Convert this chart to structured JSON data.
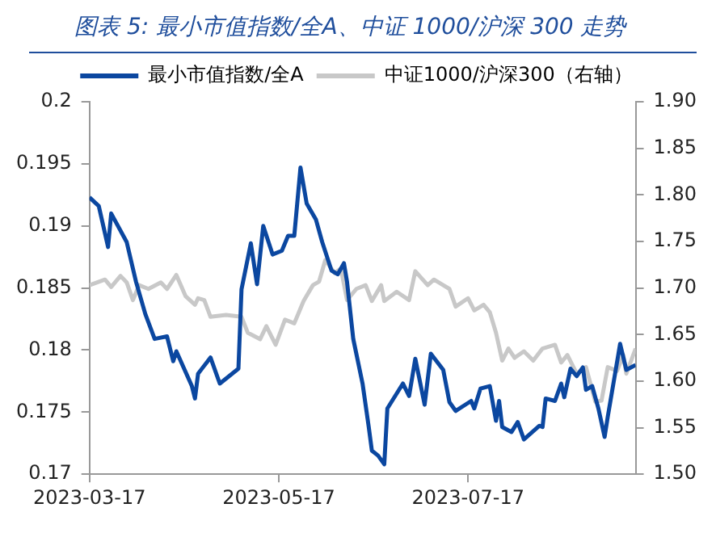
{
  "chart_data": {
    "type": "line",
    "title": "图表 5: 最小市值指数/全A、中证 1000/沪深 300 走势",
    "x": [
      "2023-03-17",
      "2023-03-20",
      "2023-03-23",
      "2023-03-24",
      "2023-03-29",
      "2023-04-01",
      "2023-04-04",
      "2023-04-07",
      "2023-04-11",
      "2023-04-13",
      "2023-04-14",
      "2023-04-19",
      "2023-04-20",
      "2023-04-21",
      "2023-04-25",
      "2023-04-28",
      "2023-05-04",
      "2023-05-05",
      "2023-05-08",
      "2023-05-10",
      "2023-05-12",
      "2023-05-15",
      "2023-05-18",
      "2023-05-20",
      "2023-05-22",
      "2023-05-24",
      "2023-05-26",
      "2023-05-29",
      "2023-05-31",
      "2023-06-03",
      "2023-06-05",
      "2023-06-07",
      "2023-06-08",
      "2023-06-10",
      "2023-06-13",
      "2023-06-15",
      "2023-06-16",
      "2023-06-18",
      "2023-06-20",
      "2023-06-21",
      "2023-06-26",
      "2023-06-28",
      "2023-06-30",
      "2023-07-03",
      "2023-07-05",
      "2023-07-09",
      "2023-07-11",
      "2023-07-13",
      "2023-07-18",
      "2023-07-19",
      "2023-07-21",
      "2023-07-24",
      "2023-07-26",
      "2023-07-27",
      "2023-07-28",
      "2023-07-31",
      "2023-08-02",
      "2023-08-04",
      "2023-08-09",
      "2023-08-10",
      "2023-08-11",
      "2023-08-14",
      "2023-08-16",
      "2023-08-17",
      "2023-08-19",
      "2023-08-21",
      "2023-08-23",
      "2023-08-24",
      "2023-08-26",
      "2023-08-28",
      "2023-08-30",
      "2023-08-31",
      "2023-09-04",
      "2023-09-06",
      "2023-09-09"
    ],
    "series": [
      {
        "name": "最小市值指数/全A",
        "color": "#0b47a0",
        "values": [
          0.1923,
          0.1916,
          0.1883,
          0.191,
          0.1887,
          0.1855,
          0.1829,
          0.1809,
          0.1811,
          0.1791,
          0.1799,
          0.1771,
          0.1761,
          0.1781,
          0.1794,
          0.1773,
          0.1785,
          0.1849,
          0.1886,
          0.1853,
          0.19,
          0.1877,
          0.188,
          0.1892,
          0.1892,
          0.1947,
          0.1918,
          0.1905,
          0.1887,
          0.1864,
          0.1861,
          0.187,
          0.1855,
          0.1809,
          0.1773,
          0.1738,
          0.1719,
          0.1715,
          0.1708,
          0.1753,
          0.1773,
          0.1763,
          0.1793,
          0.1756,
          0.1797,
          0.1784,
          0.1758,
          0.1751,
          0.1759,
          0.1753,
          0.1769,
          0.1771,
          0.1743,
          0.1759,
          0.1738,
          0.1734,
          0.1742,
          0.1728,
          0.1739,
          0.1738,
          0.1761,
          0.1759,
          0.1773,
          0.1762,
          0.1785,
          0.1779,
          0.1786,
          0.1768,
          0.1771,
          0.1753,
          0.173,
          0.1746,
          0.1805,
          0.1784,
          0.1788
        ]
      },
      {
        "name": "中证1000/沪深300（右轴）",
        "color": "#c8c8c8",
        "axis": "y2",
        "x": [
          "2023-03-17",
          "2023-03-22",
          "2023-03-24",
          "2023-03-27",
          "2023-03-29",
          "2023-03-31",
          "2023-04-02",
          "2023-04-05",
          "2023-04-09",
          "2023-04-11",
          "2023-04-14",
          "2023-04-17",
          "2023-04-20",
          "2023-04-21",
          "2023-04-23",
          "2023-04-25",
          "2023-04-30",
          "2023-05-05",
          "2023-05-07",
          "2023-05-11",
          "2023-05-13",
          "2023-05-16",
          "2023-05-19",
          "2023-05-22",
          "2023-05-25",
          "2023-05-28",
          "2023-05-30",
          "2023-06-01",
          "2023-06-04",
          "2023-06-06",
          "2023-06-08",
          "2023-06-11",
          "2023-06-14",
          "2023-06-16",
          "2023-06-19",
          "2023-06-20",
          "2023-06-24",
          "2023-06-28",
          "2023-06-30",
          "2023-07-04",
          "2023-07-06",
          "2023-07-09",
          "2023-07-11",
          "2023-07-13",
          "2023-07-17",
          "2023-07-19",
          "2023-07-22",
          "2023-07-24",
          "2023-07-26",
          "2023-07-28",
          "2023-07-30",
          "2023-08-01",
          "2023-08-04",
          "2023-08-07",
          "2023-08-10",
          "2023-08-14",
          "2023-08-16",
          "2023-08-18",
          "2023-08-21",
          "2023-08-24",
          "2023-08-27",
          "2023-08-29",
          "2023-08-31",
          "2023-09-03",
          "2023-09-05",
          "2023-09-06",
          "2023-09-09"
        ],
        "values": [
          1.703,
          1.709,
          1.701,
          1.713,
          1.706,
          1.687,
          1.703,
          1.699,
          1.706,
          1.699,
          1.714,
          1.691,
          1.682,
          1.689,
          1.687,
          1.669,
          1.671,
          1.669,
          1.652,
          1.645,
          1.659,
          1.639,
          1.666,
          1.662,
          1.686,
          1.703,
          1.707,
          1.73,
          1.716,
          1.721,
          1.687,
          1.699,
          1.703,
          1.686,
          1.703,
          1.686,
          1.696,
          1.687,
          1.718,
          1.703,
          1.709,
          1.703,
          1.699,
          1.68,
          1.689,
          1.676,
          1.682,
          1.674,
          1.652,
          1.622,
          1.635,
          1.625,
          1.632,
          1.622,
          1.635,
          1.639,
          1.62,
          1.628,
          1.608,
          1.615,
          1.578,
          1.579,
          1.615,
          1.611,
          1.628,
          1.608,
          1.635
        ]
      }
    ],
    "xlim": [
      "2023-03-17",
      "2023-09-09"
    ],
    "xticks": [
      "2023-03-17",
      "2023-05-17",
      "2023-07-17"
    ],
    "ylim": [
      0.17,
      0.2
    ],
    "yticks": [
      0.17,
      0.175,
      0.18,
      0.185,
      0.19,
      0.195,
      0.2
    ],
    "y2lim": [
      1.5,
      1.9
    ],
    "y2ticks": [
      {
        "value": 1.5,
        "label": "1.50"
      },
      {
        "value": 1.55,
        "label": "1.55"
      },
      {
        "value": 1.6,
        "label": "1.60"
      },
      {
        "value": 1.65,
        "label": "1.65"
      },
      {
        "value": 1.7,
        "label": "1.70"
      },
      {
        "value": 1.75,
        "label": "1.75"
      },
      {
        "value": 1.8,
        "label": "1.80"
      },
      {
        "value": 1.85,
        "label": "1.85"
      },
      {
        "value": 1.9,
        "label": "1.90"
      }
    ],
    "legend": "top",
    "grid": false,
    "marker": "none",
    "line_style": "solid"
  }
}
